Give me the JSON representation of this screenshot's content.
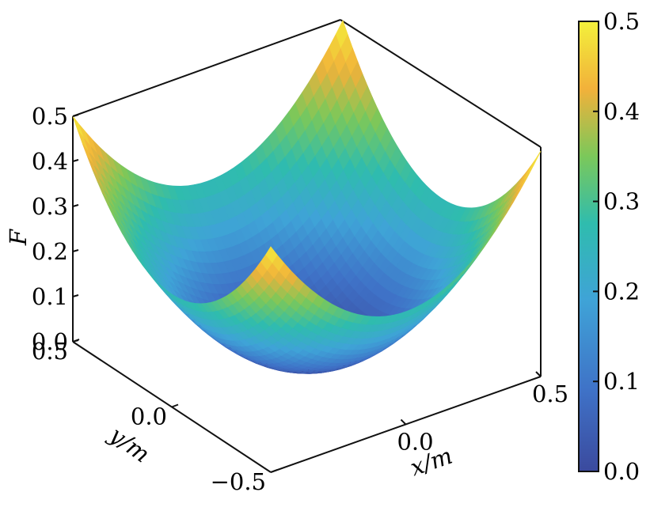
{
  "chart_data": {
    "type": "surface3d",
    "function": "F = x^2 + y^2",
    "x_range": [
      -0.5,
      0.5
    ],
    "y_range": [
      -0.5,
      0.5
    ],
    "z_range": [
      0.0,
      0.5
    ],
    "z_values_at_corners": {
      "x-0.5_y-0.5": 0.5,
      "x0.5_y-0.5": 0.5,
      "x-0.5_y0.5": 0.5,
      "x0.5_y0.5": 0.5
    },
    "z_min": 0.0,
    "xlabel": "x/m",
    "ylabel": "y/m",
    "zlabel": "F",
    "x_ticks": [
      "0.0",
      "0.5"
    ],
    "y_ticks": [
      "−0.5",
      "0.0",
      "0.5"
    ],
    "z_ticks": [
      "0.0",
      "0.1",
      "0.2",
      "0.3",
      "0.4",
      "0.5"
    ],
    "colorbar": {
      "ticks": [
        "0.0",
        "0.1",
        "0.2",
        "0.3",
        "0.4",
        "0.5"
      ],
      "range": [
        0.0,
        0.5
      ],
      "colormap": [
        "#3b4a9e",
        "#3f72c7",
        "#3fa3d7",
        "#2fbcae",
        "#7bc85a",
        "#f2b13a",
        "#f3f13b"
      ]
    }
  }
}
